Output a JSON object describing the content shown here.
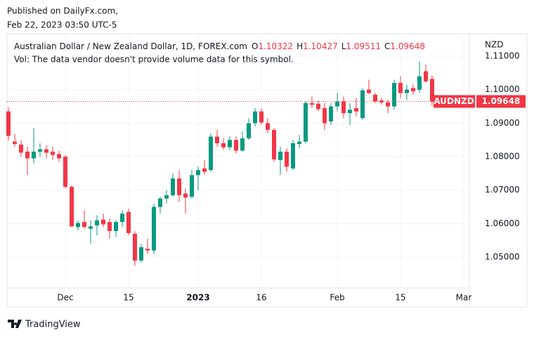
{
  "header": {
    "published": "Published on DailyFx.com,",
    "timestamp": "Feb 22, 2023 03:50 UTC-5"
  },
  "footer": {
    "brand": "TradingView"
  },
  "chart_data": {
    "type": "candlestick",
    "symbol_title": "Australian Dollar / New Zealand Dollar, 1D, FOREX.com",
    "ohlc_keys": [
      "O",
      "H",
      "L",
      "C"
    ],
    "volume_note": "Vol: The data vendor doesn't provide volume data for this symbol.",
    "currency": "NZD",
    "symbol": "AUDNZD",
    "up_color": "#089981",
    "down_color": "#f23645",
    "grid": true,
    "categories": [
      null,
      null,
      null,
      null,
      null,
      null,
      null,
      null,
      null,
      "Dec",
      null,
      null,
      null,
      null,
      null,
      null,
      null,
      null,
      null,
      "15",
      null,
      null,
      null,
      null,
      null,
      null,
      null,
      null,
      null,
      null,
      "2023",
      null,
      null,
      null,
      null,
      null,
      null,
      null,
      null,
      null,
      "16",
      null,
      null,
      null,
      null,
      null,
      null,
      null,
      null,
      null,
      null,
      null,
      "Feb",
      null,
      null,
      null,
      null,
      null,
      null,
      null,
      null,
      null,
      "15",
      null,
      null,
      null,
      null,
      null,
      null,
      null,
      null,
      null,
      "Mar"
    ],
    "open": [
      1.0935,
      1.0845,
      1.0836,
      1.0815,
      1.0795,
      1.0815,
      1.0822,
      1.0815,
      1.0808,
      1.08,
      1.071,
      1.059,
      1.0605,
      1.0585,
      1.0595,
      1.0612,
      1.0605,
      1.0578,
      1.0605,
      1.0635,
      1.057,
      1.049,
      1.0525,
      1.052,
      1.065,
      1.0675,
      1.0685,
      1.0735,
      1.069,
      1.068,
      1.0745,
      1.0765,
      1.076,
      1.086,
      1.084,
      1.0828,
      1.085,
      1.0818,
      1.0855,
      1.09,
      1.0935,
      1.09,
      1.088,
      1.079,
      1.0815,
      1.0765,
      1.0838,
      1.0845,
      1.096,
      1.0958,
      1.0945,
      1.0905,
      1.095,
      1.0965,
      1.093,
      1.0945,
      1.0915,
      1.1,
      1.0985,
      1.0968,
      1.0962,
      1.095,
      1.102,
      1.099,
      1.1005,
      1.1,
      1.1055,
      1.10322,
      null,
      null,
      null,
      null,
      null
    ],
    "high": [
      1.0948,
      1.0868,
      1.085,
      1.083,
      1.0885,
      1.084,
      1.0835,
      1.083,
      1.0818,
      1.0805,
      1.0715,
      1.061,
      1.064,
      1.061,
      1.0625,
      1.063,
      1.0615,
      1.061,
      1.064,
      1.0645,
      1.0578,
      1.054,
      1.0555,
      1.066,
      1.068,
      1.07,
      1.075,
      1.076,
      1.0705,
      1.076,
      1.077,
      1.079,
      1.087,
      1.088,
      1.0855,
      1.086,
      1.086,
      1.0875,
      1.0915,
      1.0945,
      1.0945,
      1.0915,
      1.0885,
      1.083,
      1.0825,
      1.085,
      1.0865,
      1.0965,
      1.098,
      1.0968,
      1.096,
      1.096,
      1.099,
      1.098,
      1.096,
      1.0975,
      1.1005,
      1.103,
      1.099,
      1.0975,
      1.097,
      1.103,
      1.104,
      1.1015,
      1.1015,
      1.1085,
      1.1075,
      1.10427,
      null,
      null,
      null,
      null,
      null
    ],
    "low": [
      1.0848,
      1.083,
      1.08,
      1.0745,
      1.078,
      1.08,
      1.0795,
      1.079,
      1.0785,
      1.0705,
      1.059,
      1.058,
      1.0585,
      1.054,
      1.0565,
      1.059,
      1.0555,
      1.056,
      1.059,
      1.0565,
      1.0475,
      1.0485,
      1.051,
      1.051,
      1.063,
      1.066,
      1.068,
      1.0665,
      1.063,
      1.0675,
      1.07,
      1.0745,
      1.0755,
      1.083,
      1.082,
      1.082,
      1.081,
      1.0815,
      1.085,
      1.089,
      1.0895,
      1.087,
      1.0785,
      1.0745,
      1.0755,
      1.076,
      1.0825,
      1.084,
      1.0945,
      1.0935,
      1.088,
      1.0895,
      1.0935,
      1.0915,
      1.0895,
      1.092,
      1.091,
      1.0985,
      1.096,
      1.0955,
      1.093,
      1.094,
      1.0975,
      1.097,
      1.0985,
      1.099,
      1.102,
      1.09511,
      null,
      null,
      null,
      null,
      null
    ],
    "close": [
      1.0862,
      1.0838,
      1.0812,
      1.0795,
      1.0815,
      1.0822,
      1.0812,
      1.0805,
      1.0795,
      1.071,
      1.0592,
      1.0602,
      1.059,
      1.0592,
      1.061,
      1.0598,
      1.0578,
      1.0605,
      1.063,
      1.0572,
      1.049,
      1.053,
      1.052,
      1.065,
      1.0675,
      1.0685,
      1.0735,
      1.0685,
      1.0678,
      1.0745,
      1.076,
      1.0755,
      1.086,
      1.084,
      1.0828,
      1.085,
      1.0818,
      1.0855,
      1.09,
      1.0935,
      1.0902,
      1.088,
      1.0792,
      1.0815,
      1.077,
      1.084,
      1.0845,
      1.096,
      1.0955,
      1.0942,
      1.09,
      1.095,
      1.0965,
      1.093,
      1.094,
      1.0935,
      1.0998,
      1.099,
      1.0965,
      1.0962,
      1.095,
      1.102,
      1.099,
      1.1,
      1.0995,
      1.104,
      1.1025,
      1.09648,
      null,
      null,
      null,
      null,
      null
    ],
    "ylim": [
      1.0408,
      1.1167
    ],
    "yticks": [
      {
        "value": 1.05,
        "label": "1.05000"
      },
      {
        "value": 1.06,
        "label": "1.06000"
      },
      {
        "value": 1.07,
        "label": "1.07000"
      },
      {
        "value": 1.08,
        "label": "1.08000"
      },
      {
        "value": 1.09,
        "label": "1.09000"
      },
      {
        "value": 1.1,
        "label": "1.10000"
      },
      {
        "value": 1.11,
        "label": "1.11000"
      }
    ]
  }
}
